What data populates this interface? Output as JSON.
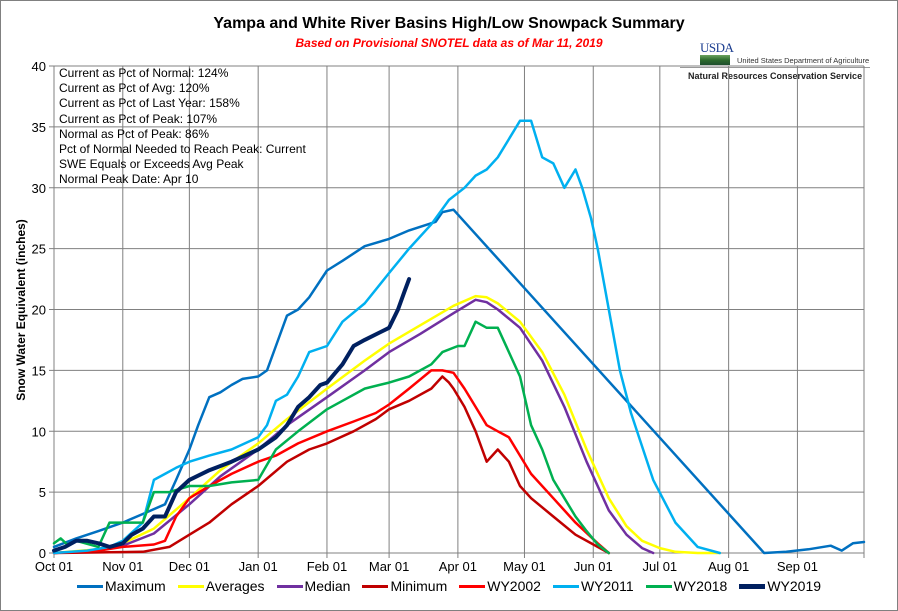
{
  "chart_data": {
    "type": "line",
    "title": "Yampa and White River Basins High/Low Snowpack Summary",
    "subtitle": "Based on Provisional SNOTEL data as of Mar 11, 2019",
    "xlabel": "",
    "ylabel": "Snow Water Equivalent (inches)",
    "x_units": "day of water year (0 = Oct 01)",
    "xlim": [
      0,
      365
    ],
    "ylim": [
      0,
      40
    ],
    "yticks": [
      0,
      5,
      10,
      15,
      20,
      25,
      30,
      35,
      40
    ],
    "xtick_labels": [
      "Oct 01",
      "Nov 01",
      "Dec 01",
      "Jan 01",
      "Feb 01",
      "Mar 01",
      "Apr 01",
      "May 01",
      "Jun 01",
      "Jul 01",
      "Aug 01",
      "Sep 01"
    ],
    "xtick_days": [
      0,
      31,
      61,
      92,
      123,
      151,
      182,
      212,
      243,
      273,
      304,
      335
    ],
    "grid": true,
    "legend_position": "bottom",
    "series": [
      {
        "name": "Maximum",
        "color": "#0070c0",
        "width": 2.5,
        "x": [
          0,
          10,
          20,
          31,
          40,
          50,
          55,
          61,
          65,
          70,
          75,
          80,
          85,
          92,
          96,
          100,
          105,
          110,
          115,
          123,
          130,
          140,
          151,
          160,
          172,
          175,
          180,
          320,
          330,
          340,
          350,
          355,
          360,
          365
        ],
        "y": [
          0.5,
          1.2,
          1.8,
          2.5,
          3.2,
          4.0,
          6.0,
          8.5,
          10.5,
          12.8,
          13.2,
          13.8,
          14.3,
          14.5,
          15.0,
          17.0,
          19.5,
          20.0,
          21.0,
          23.2,
          24.0,
          25.2,
          25.8,
          26.5,
          27.2,
          28.0,
          28.2,
          0.0,
          0.1,
          0.3,
          0.6,
          0.2,
          0.8,
          0.9
        ]
      },
      {
        "name": "Averages",
        "color": "#ffff00",
        "width": 2.5,
        "x": [
          0,
          20,
          31,
          45,
          61,
          75,
          92,
          105,
          123,
          140,
          151,
          165,
          180,
          190,
          195,
          200,
          210,
          220,
          230,
          240,
          250,
          258,
          265,
          273,
          280,
          290,
          300
        ],
        "y": [
          0.0,
          0.3,
          0.8,
          2.0,
          4.5,
          6.8,
          9.0,
          11.0,
          13.5,
          15.8,
          17.2,
          18.7,
          20.3,
          21.1,
          21.0,
          20.5,
          19.0,
          16.5,
          13.0,
          8.5,
          4.5,
          2.2,
          1.0,
          0.4,
          0.1,
          0.0,
          0.0
        ]
      },
      {
        "name": "Median",
        "color": "#7030a0",
        "width": 2.5,
        "x": [
          0,
          20,
          31,
          45,
          61,
          75,
          92,
          105,
          123,
          140,
          151,
          165,
          180,
          190,
          195,
          200,
          210,
          220,
          230,
          240,
          250,
          258,
          265,
          270
        ],
        "y": [
          0.0,
          0.2,
          0.6,
          1.6,
          4.0,
          6.3,
          8.5,
          10.5,
          12.8,
          15.0,
          16.5,
          18.0,
          19.7,
          20.8,
          20.6,
          20.0,
          18.5,
          15.8,
          12.0,
          7.5,
          3.5,
          1.5,
          0.4,
          0.0
        ]
      },
      {
        "name": "Minimum",
        "color": "#c00000",
        "width": 2.5,
        "x": [
          0,
          40,
          52,
          61,
          70,
          80,
          92,
          105,
          115,
          123,
          135,
          145,
          151,
          160,
          170,
          175,
          178,
          180,
          185,
          190,
          195,
          200,
          205,
          210,
          215,
          225,
          235,
          245,
          250
        ],
        "y": [
          0.0,
          0.1,
          0.5,
          1.5,
          2.5,
          4.0,
          5.5,
          7.5,
          8.5,
          9.0,
          10.0,
          11.0,
          11.8,
          12.5,
          13.5,
          14.5,
          14.0,
          13.5,
          12.0,
          10.0,
          7.5,
          8.5,
          7.5,
          5.5,
          4.5,
          3.0,
          1.5,
          0.5,
          0.0
        ]
      },
      {
        "name": "WY2002",
        "color": "#ff0000",
        "width": 2.5,
        "x": [
          0,
          20,
          31,
          45,
          50,
          55,
          61,
          70,
          80,
          92,
          100,
          110,
          123,
          135,
          145,
          151,
          160,
          170,
          175,
          180,
          185,
          190,
          195,
          200,
          205,
          210,
          215,
          225,
          235,
          245,
          250
        ],
        "y": [
          0.0,
          0.2,
          0.5,
          0.7,
          1.0,
          3.0,
          4.5,
          5.5,
          6.5,
          7.5,
          8.0,
          9.0,
          10.0,
          10.8,
          11.5,
          12.2,
          13.5,
          15.0,
          15.0,
          14.8,
          13.5,
          12.0,
          10.5,
          10.0,
          9.5,
          8.0,
          6.5,
          4.5,
          2.5,
          0.8,
          0.0
        ]
      },
      {
        "name": "WY2011",
        "color": "#00b0f0",
        "width": 2.5,
        "x": [
          0,
          15,
          25,
          31,
          40,
          45,
          50,
          55,
          61,
          70,
          80,
          92,
          96,
          100,
          105,
          110,
          115,
          123,
          130,
          140,
          151,
          160,
          170,
          178,
          185,
          190,
          195,
          200,
          205,
          210,
          215,
          220,
          225,
          230,
          235,
          238,
          242,
          245,
          250,
          255,
          260,
          270,
          280,
          290,
          300
        ],
        "y": [
          0.0,
          0.2,
          0.5,
          1.0,
          2.5,
          6.0,
          6.5,
          7.0,
          7.5,
          8.0,
          8.5,
          9.5,
          10.5,
          12.5,
          13.0,
          14.5,
          16.5,
          17.0,
          19.0,
          20.5,
          23.0,
          25.0,
          27.0,
          29.0,
          30.0,
          31.0,
          31.5,
          32.5,
          34.0,
          35.5,
          35.5,
          32.5,
          32.0,
          30.0,
          31.5,
          30.0,
          27.5,
          25.0,
          20.0,
          15.0,
          11.5,
          6.0,
          2.5,
          0.5,
          0.0
        ]
      },
      {
        "name": "WY2018",
        "color": "#00b050",
        "width": 2.5,
        "x": [
          0,
          3,
          6,
          10,
          20,
          25,
          31,
          40,
          45,
          52,
          61,
          70,
          80,
          92,
          100,
          110,
          123,
          130,
          140,
          151,
          160,
          170,
          175,
          182,
          185,
          190,
          195,
          200,
          205,
          210,
          215,
          220,
          225,
          230,
          235,
          240,
          245,
          250
        ],
        "y": [
          0.8,
          1.2,
          0.7,
          1.0,
          0.5,
          2.5,
          2.5,
          2.5,
          5.0,
          5.0,
          5.5,
          5.5,
          5.8,
          6.0,
          8.5,
          10.0,
          11.8,
          12.5,
          13.5,
          14.0,
          14.5,
          15.5,
          16.5,
          17.0,
          17.0,
          19.0,
          18.5,
          18.5,
          16.5,
          14.5,
          10.5,
          8.5,
          6.0,
          4.5,
          3.0,
          1.8,
          0.7,
          0.0
        ]
      },
      {
        "name": "WY2019",
        "color": "#002060",
        "width": 4,
        "x": [
          0,
          5,
          10,
          15,
          20,
          25,
          31,
          35,
          40,
          45,
          50,
          55,
          61,
          70,
          80,
          92,
          100,
          105,
          110,
          115,
          120,
          123,
          130,
          135,
          140,
          151,
          155,
          158,
          160
        ],
        "y": [
          0.2,
          0.5,
          1.0,
          1.0,
          0.8,
          0.5,
          0.8,
          1.5,
          2.0,
          3.0,
          3.0,
          5.0,
          6.0,
          6.8,
          7.5,
          8.5,
          9.5,
          10.5,
          12.0,
          12.8,
          13.8,
          14.0,
          15.5,
          17.0,
          17.5,
          18.5,
          20.0,
          21.5,
          22.5
        ]
      }
    ],
    "annotations": [
      "Current  as Pct of Normal: 124%",
      "Current  as Pct of Avg: 120%",
      "Current  as Pct of Last Year: 158%",
      "Current  as Pct of Peak: 107%",
      "Normal  as Pct of Peak: 86%",
      "Pct of Normal Needed  to Reach Peak: Current",
      "SWE Equals  or Exceeds  Avg  Peak",
      "Normal  Peak Date: Apr 10"
    ]
  },
  "logo": {
    "agency": "USDA",
    "department": "United States Department of Agriculture",
    "service": "Natural Resources Conservation Service"
  }
}
